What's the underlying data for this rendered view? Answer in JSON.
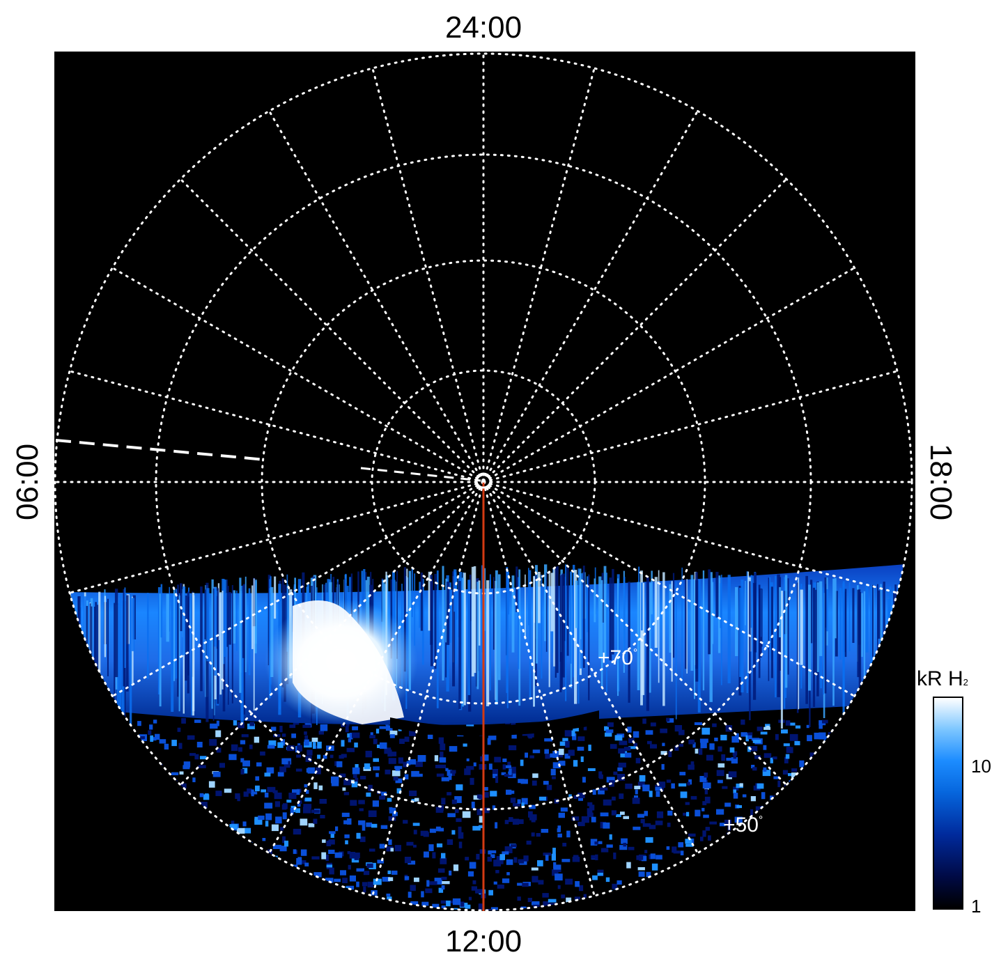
{
  "labels": {
    "top": "24:00",
    "bottom": "12:00",
    "left": "06:00",
    "right": "18:00"
  },
  "latitude_labels": [
    {
      "id": "lat-70",
      "text": "+70",
      "unit": "°"
    },
    {
      "id": "lat-50",
      "text": "+50",
      "unit": "°"
    }
  ],
  "colorbar": {
    "title": "kR H",
    "title_subscript": "2",
    "ticks": [
      "10",
      "1"
    ],
    "range": [
      1,
      30
    ],
    "scale": "log"
  },
  "colors": {
    "background": "#000000",
    "grid": "#ffffff",
    "meridian_line": "#d33a12",
    "aurora_dark": "#001a80",
    "aurora_mid": "#0a78ff",
    "aurora_bright": "#ffffff"
  }
}
